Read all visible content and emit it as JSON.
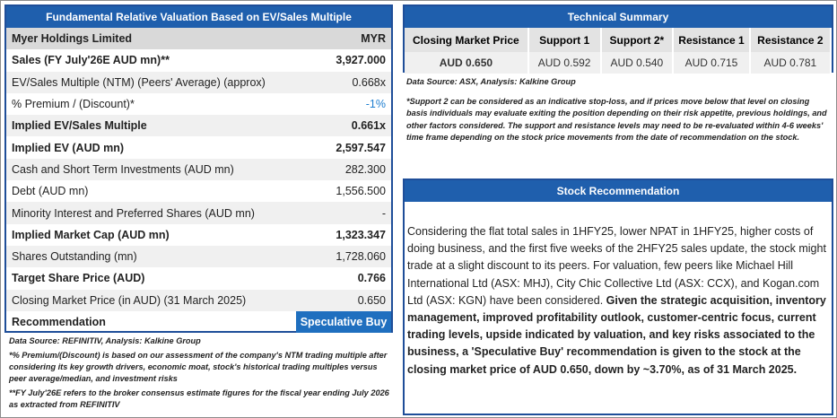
{
  "valuation": {
    "title": "Fundamental Relative Valuation Based on EV/Sales Multiple",
    "rows": [
      [
        "Myer Holdings Limited",
        "MYR"
      ],
      [
        "Sales (FY July'26E AUD mn)**",
        "3,927.000"
      ],
      [
        "EV/Sales Multiple (NTM)  (Peers' Average) (approx)",
        "0.668x"
      ],
      [
        "% Premium / (Discount)*",
        "-1%"
      ],
      [
        "Implied EV/Sales Multiple",
        "0.661x"
      ],
      [
        "Implied EV (AUD mn)",
        "2,597.547"
      ],
      [
        "Cash and Short Term Investments (AUD mn)",
        "282.300"
      ],
      [
        "Debt (AUD mn)",
        "1,556.500"
      ],
      [
        "Minority Interest and Preferred Shares (AUD mn)",
        "-"
      ],
      [
        "Implied Market Cap (AUD mn)",
        "1,323.347"
      ],
      [
        "Shares Outstanding (mn)",
        "1,728.060"
      ],
      [
        "Target Share Price (AUD)",
        "0.766"
      ],
      [
        "Closing Market Price (in AUD) (31 March 2025)",
        "0.650"
      ],
      [
        "Recommendation",
        "Speculative Buy"
      ]
    ],
    "notes": [
      "Data Source: REFINITIV, Analysis: Kalkine Group",
      "*% Premium/(Discount) is based on our assessment of the company's NTM trading multiple after considering its key growth drivers, economic moat, stock's historical trading multiples versus peer average/median, and investment risks",
      "**FY July'26E refers to the broker consensus estimate figures for the fiscal year ending July 2026 as extracted from REFINITIV"
    ]
  },
  "technical": {
    "title": "Technical Summary",
    "header": [
      "Closing Market Price",
      "Support 1",
      "Support 2*",
      "Resistance 1",
      "Resistance 2"
    ],
    "values": [
      "AUD 0.650",
      "AUD 0.592",
      "AUD 0.540",
      "AUD 0.715",
      "AUD 0.781"
    ],
    "source": "Data Source: ASX, Analysis: Kalkine Group",
    "note": "*Support 2 can be considered as an indicative stop-loss, and if prices move below that level on closing basis individuals may evaluate exiting the position depending on their risk appetite, previous holdings, and other factors considered. The support and resistance levels may need to be re-evaluated within 4-6 weeks' time frame depending on the stock price movements from the date of recommendation on the stock."
  },
  "recommendation": {
    "title": "Stock Recommendation",
    "text": "Considering the flat total sales in 1HFY25, lower NPAT in 1HFY25, higher costs of doing business, and the first five weeks of the 2HFY25 sales update, the stock might trade at a slight discount to its peers. For valuation, few peers like Michael Hill International Ltd (ASX: MHJ), City Chic Collective Ltd (ASX: CCX), and Kogan.com Ltd (ASX: KGN) have been considered.",
    "text_bold": "Given the strategic acquisition, inventory management, improved profitability outlook, customer-centric focus, current trading levels, upside indicated by valuation, and key risks associated to the business, a 'Speculative Buy' recommendation is given to the stock at the closing market price of AUD 0.650, down by ~3.70%, as of 31 March 2025."
  }
}
